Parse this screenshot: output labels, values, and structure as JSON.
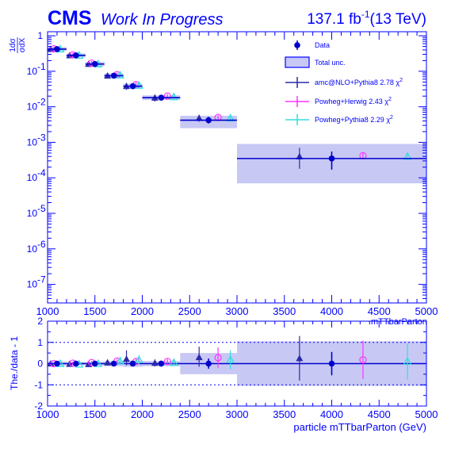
{
  "header": {
    "cms": "CMS",
    "wip": "Work In Progress",
    "lumi": "137.1 fb",
    "lumi_exp": "-1",
    "energy": "(13 TeV)"
  },
  "colors": {
    "axis": "#0000ff",
    "data": "#0000cc",
    "band": "#c8c8f5",
    "amc": "#2a2aa8",
    "herwig": "#ff33ff",
    "pythia": "#33dddd"
  },
  "chart_data": {
    "type": "scatter",
    "top_panel": {
      "ylabel_num": "1dσ",
      "ylabel_den": "σdX",
      "yscale": "log",
      "ylim": [
        3e-08,
        1.3
      ],
      "xlim": [
        1000,
        5000
      ],
      "x_tick_labels": [
        "1000",
        "1500",
        "2000",
        "2500",
        "3000",
        "3500",
        "4000",
        "4500",
        "5000"
      ],
      "y_tick_labels": [
        "1",
        "10",
        "10",
        "10",
        "10",
        "10",
        "10",
        "10"
      ],
      "y_tick_exps": [
        "",
        "-1",
        "-2",
        "-3",
        "-4",
        "-5",
        "-6",
        "-7"
      ],
      "x_label_partial": "mTTbarParton",
      "bins": [
        [
          1000,
          1200
        ],
        [
          1200,
          1400
        ],
        [
          1400,
          1600
        ],
        [
          1600,
          1800
        ],
        [
          1800,
          2000
        ],
        [
          2000,
          2400
        ],
        [
          2400,
          3000
        ],
        [
          3000,
          5000
        ]
      ],
      "data": {
        "x": [
          1100,
          1300,
          1500,
          1700,
          1900,
          2200,
          2700,
          4000
        ],
        "y": [
          0.42,
          0.28,
          0.16,
          0.075,
          0.038,
          0.018,
          0.0042,
          0.00035
        ],
        "err_lo": [
          0.38,
          0.25,
          0.14,
          0.066,
          0.033,
          0.0158,
          0.0034,
          0.00017
        ],
        "err_hi": [
          0.47,
          0.31,
          0.18,
          0.084,
          0.043,
          0.0205,
          0.0052,
          0.00055
        ]
      },
      "total_unc": {
        "lo": [
          0.37,
          0.245,
          0.138,
          0.064,
          0.032,
          0.0155,
          0.0025,
          7e-05
        ],
        "hi": [
          0.48,
          0.32,
          0.185,
          0.087,
          0.045,
          0.021,
          0.0056,
          0.0009
        ]
      },
      "series": [
        {
          "name": "amc@NLO+Pythia8 2.78 χ",
          "x": [
            1033,
            1233,
            1433,
            1633,
            1833,
            2133,
            2600,
            3660
          ],
          "y": [
            0.42,
            0.28,
            0.16,
            0.075,
            0.038,
            0.018,
            0.0048,
            0.0004
          ],
          "lo": [
            0.35,
            0.24,
            0.135,
            0.062,
            0.03,
            0.014,
            0.0038,
            0.00018
          ],
          "hi": [
            0.5,
            0.33,
            0.19,
            0.09,
            0.047,
            0.022,
            0.006,
            0.0007
          ]
        },
        {
          "name": "Powheg+Herwig 2.43 χ",
          "x": [
            1066,
            1266,
            1466,
            1733,
            1933,
            2266,
            2800,
            4330
          ],
          "y": [
            0.43,
            0.29,
            0.17,
            0.08,
            0.042,
            0.02,
            0.005,
            0.00042
          ],
          "lo": [
            0.37,
            0.25,
            0.145,
            0.068,
            0.035,
            0.017,
            0.0043,
            0.00033
          ],
          "hi": [
            0.49,
            0.33,
            0.195,
            0.092,
            0.049,
            0.023,
            0.0058,
            0.00052
          ]
        },
        {
          "name": "Powheg+Pythia8 2.29 χ",
          "x": [
            1133,
            1333,
            1533,
            1766,
            1966,
            2333,
            2930,
            4800
          ],
          "y": [
            0.42,
            0.28,
            0.16,
            0.078,
            0.04,
            0.019,
            0.0048,
            0.0004
          ],
          "lo": [
            0.36,
            0.24,
            0.137,
            0.066,
            0.034,
            0.016,
            0.0041,
            0.00032
          ],
          "hi": [
            0.48,
            0.32,
            0.185,
            0.09,
            0.046,
            0.022,
            0.0055,
            0.0005
          ]
        }
      ],
      "legend": {
        "data": "Data",
        "total": "Total unc.",
        "chi_sup": "2"
      }
    },
    "ratio_panel": {
      "ylabel": "The./data - 1",
      "ylim": [
        -2,
        2
      ],
      "y_tick_labels": [
        "2",
        "1",
        "0",
        "-1",
        "-2"
      ],
      "x_tick_labels": [
        "1000",
        "1500",
        "2000",
        "2500",
        "3000",
        "3500",
        "4000",
        "4500",
        "5000"
      ],
      "xlabel": "particle mTTbarParton (GeV)",
      "band_half": [
        0.1,
        0.08,
        0.09,
        0.12,
        0.15,
        0.12,
        0.5,
        1.05
      ],
      "data_err": [
        0.06,
        0.06,
        0.07,
        0.09,
        0.12,
        0.14,
        0.24,
        0.55
      ],
      "series": [
        {
          "x": [
            1033,
            1233,
            1433,
            1633,
            1833,
            2133,
            2600,
            3660
          ],
          "y": [
            0.0,
            -0.02,
            -0.03,
            0.05,
            0.22,
            0.03,
            0.3,
            0.25
          ],
          "lo": [
            0.12,
            0.1,
            0.12,
            0.14,
            0.3,
            0.17,
            0.45,
            1.05
          ],
          "hi": [
            0.12,
            0.1,
            0.12,
            0.14,
            0.4,
            0.17,
            0.5,
            1.05
          ]
        },
        {
          "x": [
            1066,
            1266,
            1466,
            1733,
            1933,
            2266,
            2800,
            4330
          ],
          "y": [
            0.0,
            0.02,
            0.05,
            0.12,
            0.1,
            0.1,
            0.28,
            0.18
          ],
          "lo": [
            0.07,
            0.07,
            0.08,
            0.1,
            0.12,
            0.12,
            0.48,
            0.9
          ],
          "hi": [
            0.07,
            0.07,
            0.08,
            0.1,
            0.12,
            0.12,
            0.48,
            0.9
          ]
        },
        {
          "x": [
            1133,
            1333,
            1533,
            1766,
            1966,
            2333,
            2930,
            4800
          ],
          "y": [
            0.0,
            -0.03,
            0.0,
            0.12,
            0.18,
            0.05,
            0.18,
            0.1
          ],
          "lo": [
            0.06,
            0.06,
            0.07,
            0.1,
            0.22,
            0.12,
            0.45,
            0.85
          ],
          "hi": [
            0.06,
            0.06,
            0.07,
            0.1,
            0.22,
            0.12,
            0.45,
            0.85
          ]
        }
      ]
    }
  }
}
